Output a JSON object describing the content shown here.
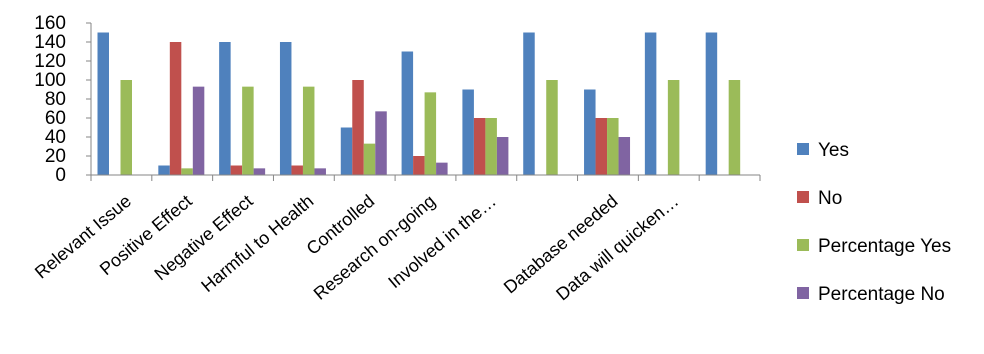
{
  "chart_data": {
    "type": "bar",
    "categories": [
      "Relevant Issue",
      "Positive Effect",
      "Negative Effect",
      "Harmful to Health",
      "Controlled",
      "Research on-going",
      "Involved in the…",
      "",
      "Database needed",
      "Data will quicken…",
      ""
    ],
    "series": [
      {
        "name": "Yes",
        "color": "#4F81BD",
        "values": [
          150,
          10,
          140,
          140,
          50,
          130,
          90,
          150,
          90,
          150,
          150
        ]
      },
      {
        "name": "No",
        "color": "#C0504D",
        "values": [
          0,
          140,
          10,
          10,
          100,
          20,
          60,
          0,
          60,
          0,
          0
        ]
      },
      {
        "name": "Percentage Yes",
        "color": "#9BBB59",
        "values": [
          100,
          7,
          93,
          93,
          33,
          87,
          60,
          100,
          60,
          100,
          100
        ]
      },
      {
        "name": "Percentage No",
        "color": "#8064A2",
        "values": [
          0,
          93,
          7,
          7,
          67,
          13,
          40,
          0,
          40,
          0,
          0
        ]
      }
    ],
    "ylim": [
      0,
      160
    ],
    "yticks": [
      0,
      20,
      40,
      60,
      80,
      100,
      120,
      140,
      160
    ],
    "grid": false,
    "legend": "right"
  }
}
